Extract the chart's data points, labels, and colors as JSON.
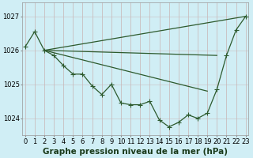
{
  "background_color": "#d0eef5",
  "grid_color": "#b8dce8",
  "line_color": "#2d5a2d",
  "xlabel": "Graphe pression niveau de la mer (hPa)",
  "xlabel_fontsize": 7.5,
  "tick_fontsize": 6,
  "ylim": [
    1023.5,
    1027.4
  ],
  "yticks": [
    1024,
    1025,
    1026,
    1027
  ],
  "xlim": [
    -0.3,
    23.3
  ],
  "xtick_labels": [
    "0",
    "1",
    "2",
    "3",
    "4",
    "5",
    "6",
    "7",
    "8",
    "9",
    "10",
    "11",
    "12",
    "13",
    "14",
    "15",
    "16",
    "17",
    "18",
    "19",
    "20",
    "21",
    "22",
    "23"
  ],
  "line_top": {
    "x": [
      2,
      23
    ],
    "y": [
      1026.0,
      1027.0
    ]
  },
  "line_mid": {
    "x": [
      2,
      20
    ],
    "y": [
      1026.0,
      1025.85
    ]
  },
  "line_low": {
    "x": [
      2,
      19
    ],
    "y": [
      1026.0,
      1024.8
    ]
  },
  "line_main": {
    "x": [
      0,
      1,
      2,
      3,
      4,
      5,
      6,
      7,
      8,
      9,
      10,
      11,
      12,
      13,
      14,
      15,
      16,
      17,
      18,
      19,
      20,
      21,
      22,
      23
    ],
    "y": [
      1026.1,
      1026.55,
      1026.0,
      1025.85,
      1025.55,
      1025.3,
      1025.3,
      1024.95,
      1024.7,
      1025.0,
      1024.45,
      1024.4,
      1024.4,
      1024.5,
      1023.95,
      1023.75,
      1023.88,
      1024.1,
      1024.0,
      1024.15,
      1024.85,
      1025.85,
      1026.6,
      1027.0
    ]
  }
}
